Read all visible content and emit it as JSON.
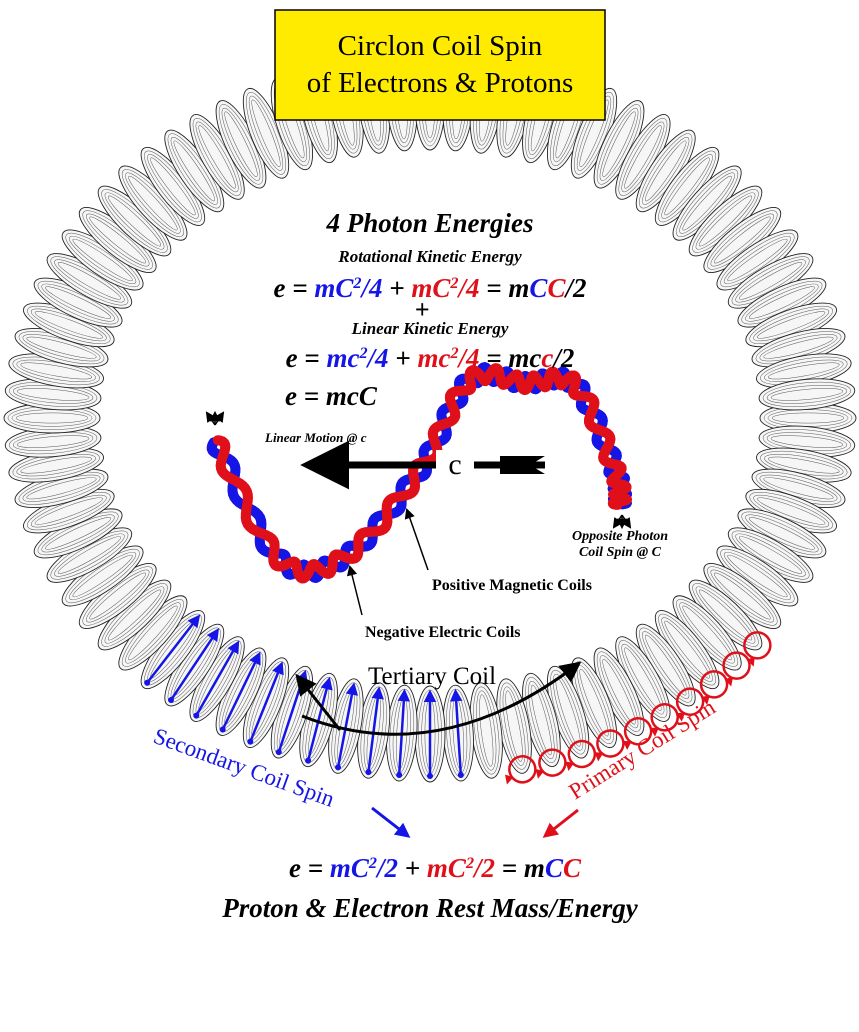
{
  "title": {
    "line1": "Circlon Coil Spin",
    "line2": "of Electrons & Protons"
  },
  "heading": "4 Photon Energies",
  "rotational_label": "Rotational Kinetic Energy",
  "equation1": [
    "e = ",
    "mC",
    "2",
    "/4",
    " + ",
    "mC",
    "2",
    "/4",
    " = m",
    "C",
    "C",
    "/2"
  ],
  "plus": "+",
  "linear_label": "Linear Kinetic Energy",
  "equation2": [
    "e = ",
    "mc",
    "2",
    "/4",
    " + ",
    "mc",
    "2",
    "/4",
    " = mc",
    "c",
    "/2"
  ],
  "equation3": "e = mcC",
  "linear_motion": "Linear Motion @ c",
  "arrow_label": "c",
  "opposite": {
    "line1": "Opposite Photon",
    "line2": "Coil Spin @ C"
  },
  "positive_coils": "Positive Magnetic Coils",
  "negative_coils": "Negative Electric Coils",
  "tertiary": "Tertiary Coil",
  "secondary": "Secondary Coil Spin",
  "primary": "Primary Coil Spin",
  "equation4": [
    "e = ",
    "mC",
    "2",
    "/2",
    " + ",
    "mC",
    "2",
    "/2",
    " = m",
    "C",
    "C"
  ],
  "footer": "Proton & Electron Rest Mass/Energy"
}
